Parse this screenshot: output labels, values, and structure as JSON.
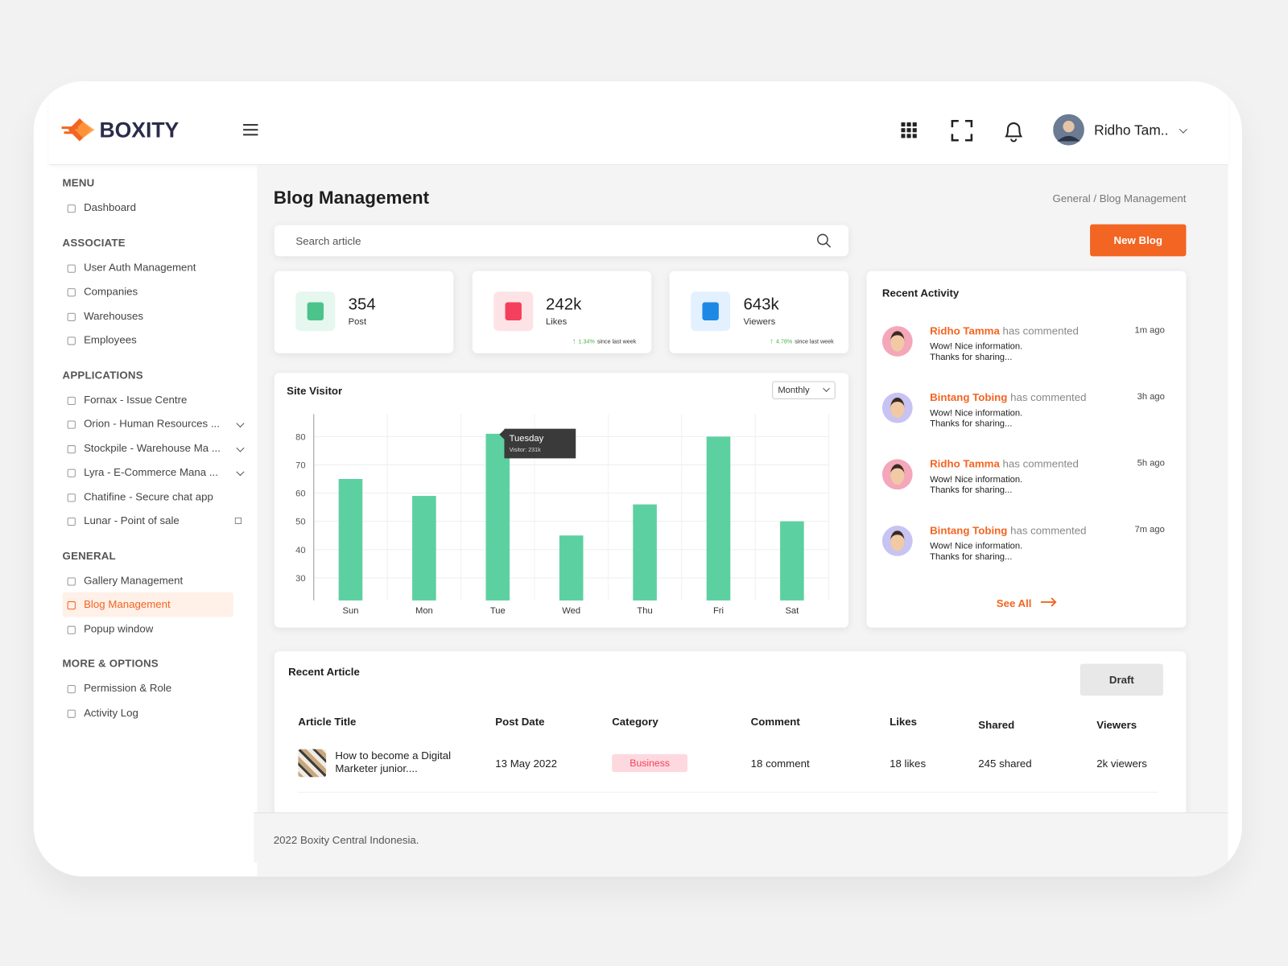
{
  "brand": "BOXITY",
  "header": {
    "user": "Ridho Tam.."
  },
  "sidebar": {
    "sections": [
      {
        "title": "MENU",
        "items": [
          "Dashboard"
        ]
      },
      {
        "title": "ASSOCIATE",
        "items": [
          "User Auth Management",
          "Companies",
          "Warehouses",
          "Employees"
        ]
      },
      {
        "title": "APPLICATIONS",
        "items": [
          "Fornax - Issue Centre",
          "Orion - Human Resources ...",
          "Stockpile - Warehouse Ma ...",
          "Lyra - E-Commerce Mana ...",
          "Chatifine - Secure chat app",
          "Lunar - Point of sale"
        ]
      },
      {
        "title": "GENERAL",
        "items": [
          "Gallery Management",
          "Blog Management",
          "Popup window"
        ]
      },
      {
        "title": "MORE & OPTIONS",
        "items": [
          "Permission & Role",
          "Activity Log"
        ]
      }
    ]
  },
  "page": {
    "title": "Blog Management",
    "breadcrumb": "General / Blog Management",
    "search_placeholder": "Search article",
    "new_button": "New Blog"
  },
  "stats": [
    {
      "value": "354",
      "label": "Post"
    },
    {
      "value": "242k",
      "label": "Likes",
      "change": "1.34%",
      "note": "since last week"
    },
    {
      "value": "643k",
      "label": "Viewers",
      "change": "4.78%",
      "note": "since last week"
    }
  ],
  "site_visitor": {
    "type": "bar",
    "title": "Site Visitor",
    "period": "Monthly",
    "categories": [
      "Sun",
      "Mon",
      "Tue",
      "Wed",
      "Thu",
      "Fri",
      "Sat"
    ],
    "values": [
      65,
      59,
      81,
      45,
      56,
      80,
      50
    ],
    "color": "#5cd0a0",
    "ylim": [
      22,
      88
    ],
    "yticks": [
      30,
      40,
      50,
      60,
      70,
      80
    ],
    "grid": true,
    "tooltip": {
      "title": "Tuesday",
      "text": "Visitor: 231k"
    }
  },
  "activity": {
    "title": "Recent Activity",
    "see_all": "See All",
    "items": [
      {
        "name": "Ridho Tamma",
        "action": "has commented",
        "time": "1m ago",
        "message": [
          "Wow! Nice information.",
          "Thanks for sharing..."
        ]
      },
      {
        "name": "Bintang Tobing",
        "action": "has commented",
        "time": "3h ago",
        "message": [
          "Wow! Nice information.",
          "Thanks for sharing..."
        ]
      },
      {
        "name": "Ridho Tamma",
        "action": "has commented",
        "time": "5h ago",
        "message": [
          "Wow! Nice information.",
          "Thanks for sharing..."
        ]
      },
      {
        "name": "Bintang Tobing",
        "action": "has commented",
        "time": "7m ago",
        "message": [
          "Wow! Nice information.",
          "Thanks for sharing..."
        ]
      }
    ]
  },
  "articles": {
    "title": "Recent Article",
    "draft": "Draft",
    "columns": [
      "Article Title",
      "Post Date",
      "Category",
      "Comment",
      "Likes",
      "Shared",
      "Viewers"
    ],
    "rows": [
      [
        "How to become a Digital Marketer junior....",
        "13 May 2022",
        "Business",
        "18 comment",
        "18 likes",
        "245 shared",
        "2k viewers"
      ]
    ]
  },
  "footer": "2022 Boxity Central Indonesia."
}
